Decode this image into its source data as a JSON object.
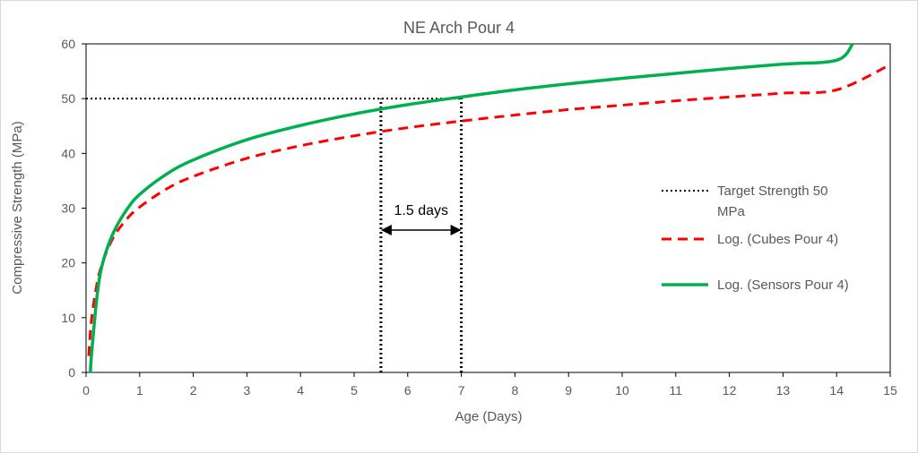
{
  "chart_data": {
    "type": "line",
    "title": "NE Arch Pour 4",
    "xlabel": "Age (Days)",
    "ylabel": "Compressive Strength (MPa)",
    "xlim": [
      0,
      15
    ],
    "ylim": [
      0,
      60
    ],
    "xticks": [
      "0",
      "1",
      "2",
      "3",
      "4",
      "5",
      "6",
      "7",
      "8",
      "9",
      "10",
      "11",
      "12",
      "13",
      "14",
      "15"
    ],
    "yticks": [
      "0",
      "10",
      "20",
      "30",
      "40",
      "50",
      "60"
    ],
    "grid": false,
    "legend_position": "right",
    "series": [
      {
        "name": "Target Strength 50 MPa",
        "style": "dotted",
        "color": "#000000",
        "x": [
          0,
          7
        ],
        "y": [
          50,
          50
        ]
      },
      {
        "name": "Log. (Cubes Pour 4)",
        "style": "dashed",
        "color": "#ff0000",
        "x": [
          0.05,
          0.1,
          0.2,
          0.3,
          0.5,
          0.75,
          1,
          1.5,
          2,
          3,
          4,
          5,
          6,
          7,
          8,
          9,
          10,
          11,
          12,
          13,
          14,
          15
        ],
        "y": [
          3.0,
          9.5,
          16.0,
          19.8,
          24.5,
          27.9,
          30.2,
          33.5,
          35.8,
          39.1,
          41.4,
          43.2,
          44.7,
          45.9,
          47.0,
          48.0,
          48.8,
          49.6,
          50.3,
          51.0,
          51.6,
          56.2
        ]
      },
      {
        "name": "Log. (Sensors Pour 4)",
        "style": "solid",
        "color": "#00b050",
        "x": [
          0.08,
          0.1,
          0.2,
          0.3,
          0.5,
          0.75,
          1,
          1.5,
          2,
          3,
          4,
          5,
          6,
          7,
          8,
          9,
          10,
          11,
          12,
          13,
          14,
          14.3
        ],
        "y": [
          0,
          3.0,
          13.5,
          19.6,
          25.3,
          29.6,
          32.5,
          36.2,
          38.8,
          42.5,
          45.1,
          47.2,
          48.9,
          50.3,
          51.6,
          52.7,
          53.7,
          54.6,
          55.5,
          56.3,
          57.0,
          60.0
        ]
      }
    ],
    "annotations": [
      {
        "text": "1.5 days",
        "x_from": 5.5,
        "x_to": 7.0,
        "y": 26
      }
    ],
    "reference_lines": [
      {
        "x": 5.5,
        "y_from": 0,
        "y_to": 50
      },
      {
        "x": 7.0,
        "y_from": 0,
        "y_to": 50
      }
    ]
  }
}
